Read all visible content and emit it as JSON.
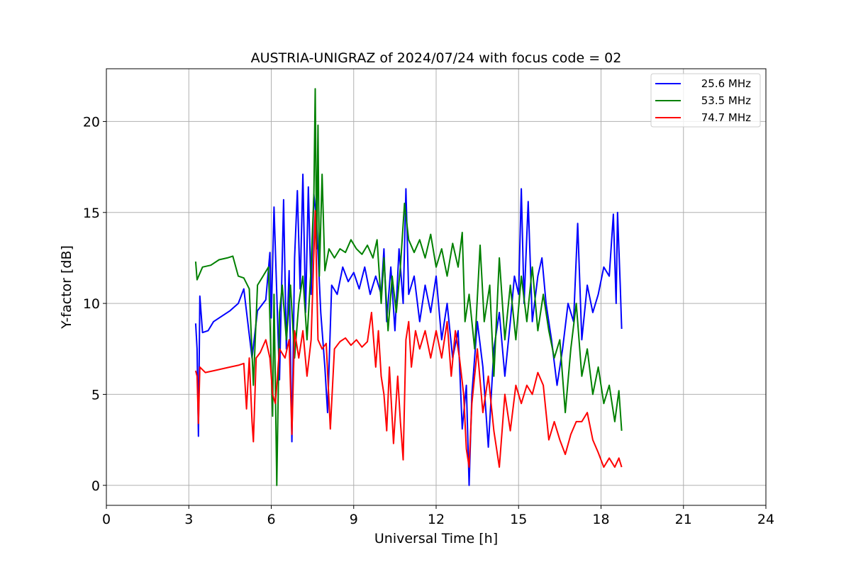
{
  "chart_data": {
    "type": "line",
    "title": "AUSTRIA-UNIGRAZ of 2024/07/24 with focus code = 02",
    "xlabel": "Universal Time [h]",
    "ylabel": "Y-factor [dB]",
    "xlim": [
      0,
      24
    ],
    "ylim": [
      -1.1,
      22.9
    ],
    "xticks": [
      0,
      3,
      6,
      9,
      12,
      15,
      18,
      21,
      24
    ],
    "yticks": [
      0,
      5,
      10,
      15,
      20
    ],
    "grid": true,
    "legend_position": "top-right",
    "series": [
      {
        "name": "25.6 MHz",
        "color": "#0000ff",
        "points": [
          [
            3.25,
            8.9
          ],
          [
            3.3,
            7.5
          ],
          [
            3.35,
            2.7
          ],
          [
            3.4,
            10.4
          ],
          [
            3.5,
            8.4
          ],
          [
            3.7,
            8.5
          ],
          [
            3.9,
            9.0
          ],
          [
            4.2,
            9.3
          ],
          [
            4.5,
            9.6
          ],
          [
            4.8,
            10.0
          ],
          [
            5.0,
            10.8
          ],
          [
            5.3,
            7.0
          ],
          [
            5.5,
            9.6
          ],
          [
            5.8,
            10.2
          ],
          [
            5.95,
            12.8
          ],
          [
            6.0,
            9.2
          ],
          [
            6.1,
            15.3
          ],
          [
            6.2,
            10.5
          ],
          [
            6.3,
            5.8
          ],
          [
            6.45,
            15.7
          ],
          [
            6.55,
            7.5
          ],
          [
            6.65,
            11.8
          ],
          [
            6.75,
            2.4
          ],
          [
            6.85,
            12.5
          ],
          [
            6.95,
            16.2
          ],
          [
            7.05,
            10.8
          ],
          [
            7.15,
            17.1
          ],
          [
            7.25,
            9.5
          ],
          [
            7.35,
            16.4
          ],
          [
            7.45,
            10.5
          ],
          [
            7.55,
            16.0
          ],
          [
            7.65,
            14.5
          ],
          [
            7.8,
            9.5
          ],
          [
            7.95,
            6.5
          ],
          [
            8.05,
            4.0
          ],
          [
            8.2,
            11.0
          ],
          [
            8.4,
            10.5
          ],
          [
            8.6,
            12.0
          ],
          [
            8.8,
            11.2
          ],
          [
            9.0,
            11.7
          ],
          [
            9.2,
            10.8
          ],
          [
            9.4,
            12.0
          ],
          [
            9.6,
            10.5
          ],
          [
            9.8,
            11.5
          ],
          [
            10.0,
            10.5
          ],
          [
            10.1,
            13.0
          ],
          [
            10.2,
            9.0
          ],
          [
            10.35,
            12.0
          ],
          [
            10.5,
            8.5
          ],
          [
            10.65,
            13.0
          ],
          [
            10.8,
            10.0
          ],
          [
            10.9,
            16.3
          ],
          [
            11.0,
            10.5
          ],
          [
            11.2,
            11.5
          ],
          [
            11.4,
            9.0
          ],
          [
            11.6,
            11.0
          ],
          [
            11.8,
            9.5
          ],
          [
            12.0,
            11.5
          ],
          [
            12.2,
            8.0
          ],
          [
            12.4,
            10.0
          ],
          [
            12.6,
            7.0
          ],
          [
            12.8,
            8.5
          ],
          [
            12.95,
            3.1
          ],
          [
            13.1,
            5.5
          ],
          [
            13.2,
            0.0
          ],
          [
            13.3,
            5.0
          ],
          [
            13.5,
            9.0
          ],
          [
            13.7,
            6.5
          ],
          [
            13.9,
            2.1
          ],
          [
            14.1,
            7.5
          ],
          [
            14.3,
            9.5
          ],
          [
            14.5,
            6.0
          ],
          [
            14.7,
            9.0
          ],
          [
            14.85,
            11.5
          ],
          [
            15.0,
            10.5
          ],
          [
            15.1,
            16.3
          ],
          [
            15.2,
            10.0
          ],
          [
            15.35,
            15.6
          ],
          [
            15.5,
            9.0
          ],
          [
            15.7,
            11.5
          ],
          [
            15.85,
            12.5
          ],
          [
            16.0,
            10.0
          ],
          [
            16.2,
            8.0
          ],
          [
            16.4,
            5.5
          ],
          [
            16.6,
            7.5
          ],
          [
            16.8,
            10.0
          ],
          [
            17.0,
            9.0
          ],
          [
            17.15,
            14.4
          ],
          [
            17.3,
            8.0
          ],
          [
            17.5,
            11.0
          ],
          [
            17.7,
            9.5
          ],
          [
            17.9,
            10.5
          ],
          [
            18.1,
            12.0
          ],
          [
            18.3,
            11.5
          ],
          [
            18.45,
            14.9
          ],
          [
            18.55,
            10.0
          ],
          [
            18.6,
            15.0
          ],
          [
            18.7,
            11.0
          ],
          [
            18.75,
            8.6
          ]
        ]
      },
      {
        "name": "53.5 MHz",
        "color": "#008000",
        "points": [
          [
            3.25,
            12.3
          ],
          [
            3.3,
            11.3
          ],
          [
            3.5,
            12.0
          ],
          [
            3.8,
            12.1
          ],
          [
            4.1,
            12.4
          ],
          [
            4.4,
            12.5
          ],
          [
            4.6,
            12.6
          ],
          [
            4.8,
            11.5
          ],
          [
            5.0,
            11.4
          ],
          [
            5.2,
            10.8
          ],
          [
            5.35,
            5.5
          ],
          [
            5.5,
            11.0
          ],
          [
            5.7,
            11.5
          ],
          [
            5.9,
            12.0
          ],
          [
            6.05,
            3.8
          ],
          [
            6.1,
            10.5
          ],
          [
            6.2,
            0.0
          ],
          [
            6.3,
            9.5
          ],
          [
            6.4,
            11.0
          ],
          [
            6.55,
            8.0
          ],
          [
            6.7,
            11.0
          ],
          [
            6.85,
            7.0
          ],
          [
            7.0,
            10.0
          ],
          [
            7.15,
            11.5
          ],
          [
            7.3,
            8.0
          ],
          [
            7.45,
            12.0
          ],
          [
            7.55,
            16.0
          ],
          [
            7.6,
            21.8
          ],
          [
            7.65,
            13.0
          ],
          [
            7.7,
            19.8
          ],
          [
            7.75,
            11.5
          ],
          [
            7.85,
            17.1
          ],
          [
            7.95,
            11.8
          ],
          [
            8.1,
            13.0
          ],
          [
            8.3,
            12.5
          ],
          [
            8.5,
            13.0
          ],
          [
            8.7,
            12.8
          ],
          [
            8.9,
            13.5
          ],
          [
            9.1,
            13.0
          ],
          [
            9.3,
            12.7
          ],
          [
            9.5,
            13.2
          ],
          [
            9.7,
            12.5
          ],
          [
            9.85,
            13.5
          ],
          [
            10.0,
            10.0
          ],
          [
            10.1,
            12.5
          ],
          [
            10.25,
            8.5
          ],
          [
            10.4,
            11.5
          ],
          [
            10.55,
            9.5
          ],
          [
            10.7,
            12.0
          ],
          [
            10.85,
            15.5
          ],
          [
            11.0,
            13.5
          ],
          [
            11.2,
            12.8
          ],
          [
            11.4,
            13.5
          ],
          [
            11.6,
            12.5
          ],
          [
            11.8,
            13.8
          ],
          [
            12.0,
            12.0
          ],
          [
            12.2,
            13.0
          ],
          [
            12.4,
            11.5
          ],
          [
            12.6,
            13.3
          ],
          [
            12.8,
            12.0
          ],
          [
            12.95,
            13.9
          ],
          [
            13.05,
            9.0
          ],
          [
            13.2,
            10.5
          ],
          [
            13.4,
            7.5
          ],
          [
            13.6,
            13.2
          ],
          [
            13.75,
            9.0
          ],
          [
            13.95,
            11.0
          ],
          [
            14.1,
            6.0
          ],
          [
            14.3,
            12.5
          ],
          [
            14.5,
            8.0
          ],
          [
            14.7,
            11.0
          ],
          [
            14.9,
            8.0
          ],
          [
            15.1,
            11.5
          ],
          [
            15.3,
            9.0
          ],
          [
            15.5,
            12.0
          ],
          [
            15.7,
            8.5
          ],
          [
            15.9,
            10.5
          ],
          [
            16.1,
            8.5
          ],
          [
            16.3,
            7.0
          ],
          [
            16.5,
            8.0
          ],
          [
            16.7,
            4.0
          ],
          [
            16.9,
            7.5
          ],
          [
            17.1,
            10.0
          ],
          [
            17.3,
            6.0
          ],
          [
            17.5,
            7.5
          ],
          [
            17.7,
            5.0
          ],
          [
            17.9,
            6.5
          ],
          [
            18.1,
            4.5
          ],
          [
            18.3,
            5.5
          ],
          [
            18.5,
            3.5
          ],
          [
            18.65,
            5.2
          ],
          [
            18.75,
            3.0
          ]
        ]
      },
      {
        "name": "74.7 MHz",
        "color": "#ff0000",
        "points": [
          [
            3.25,
            6.3
          ],
          [
            3.3,
            6.0
          ],
          [
            3.35,
            3.4
          ],
          [
            3.4,
            6.5
          ],
          [
            3.6,
            6.2
          ],
          [
            3.9,
            6.3
          ],
          [
            4.2,
            6.4
          ],
          [
            4.5,
            6.5
          ],
          [
            4.8,
            6.6
          ],
          [
            5.0,
            6.7
          ],
          [
            5.1,
            4.2
          ],
          [
            5.2,
            7.0
          ],
          [
            5.3,
            3.5
          ],
          [
            5.35,
            2.4
          ],
          [
            5.45,
            7.0
          ],
          [
            5.6,
            7.3
          ],
          [
            5.8,
            8.0
          ],
          [
            5.95,
            7.0
          ],
          [
            6.05,
            5.0
          ],
          [
            6.15,
            4.5
          ],
          [
            6.3,
            7.5
          ],
          [
            6.5,
            7.0
          ],
          [
            6.65,
            8.0
          ],
          [
            6.75,
            2.8
          ],
          [
            6.85,
            8.5
          ],
          [
            7.0,
            7.0
          ],
          [
            7.15,
            8.5
          ],
          [
            7.3,
            6.0
          ],
          [
            7.45,
            8.0
          ],
          [
            7.6,
            15.1
          ],
          [
            7.7,
            8.0
          ],
          [
            7.85,
            7.5
          ],
          [
            8.0,
            7.8
          ],
          [
            8.15,
            3.1
          ],
          [
            8.3,
            7.5
          ],
          [
            8.5,
            7.9
          ],
          [
            8.7,
            8.1
          ],
          [
            8.9,
            7.7
          ],
          [
            9.1,
            8.0
          ],
          [
            9.3,
            7.6
          ],
          [
            9.5,
            7.9
          ],
          [
            9.65,
            9.5
          ],
          [
            9.8,
            6.5
          ],
          [
            9.9,
            8.5
          ],
          [
            10.0,
            6.0
          ],
          [
            10.1,
            5.0
          ],
          [
            10.2,
            3.0
          ],
          [
            10.3,
            6.5
          ],
          [
            10.45,
            2.3
          ],
          [
            10.6,
            6.0
          ],
          [
            10.7,
            3.5
          ],
          [
            10.8,
            1.4
          ],
          [
            10.9,
            8.0
          ],
          [
            11.0,
            9.0
          ],
          [
            11.1,
            6.5
          ],
          [
            11.25,
            8.5
          ],
          [
            11.4,
            7.5
          ],
          [
            11.6,
            8.5
          ],
          [
            11.8,
            7.0
          ],
          [
            12.0,
            8.5
          ],
          [
            12.2,
            7.0
          ],
          [
            12.4,
            9.0
          ],
          [
            12.55,
            6.0
          ],
          [
            12.7,
            8.5
          ],
          [
            12.85,
            7.0
          ],
          [
            13.0,
            5.0
          ],
          [
            13.1,
            2.0
          ],
          [
            13.2,
            1.0
          ],
          [
            13.3,
            4.5
          ],
          [
            13.5,
            7.5
          ],
          [
            13.7,
            4.0
          ],
          [
            13.9,
            6.0
          ],
          [
            14.1,
            3.0
          ],
          [
            14.3,
            1.0
          ],
          [
            14.5,
            5.0
          ],
          [
            14.7,
            3.0
          ],
          [
            14.9,
            5.5
          ],
          [
            15.1,
            4.5
          ],
          [
            15.3,
            5.5
          ],
          [
            15.5,
            5.0
          ],
          [
            15.7,
            6.2
          ],
          [
            15.9,
            5.5
          ],
          [
            16.0,
            4.0
          ],
          [
            16.1,
            2.5
          ],
          [
            16.3,
            3.5
          ],
          [
            16.5,
            2.5
          ],
          [
            16.7,
            1.7
          ],
          [
            16.9,
            2.8
          ],
          [
            17.1,
            3.5
          ],
          [
            17.3,
            3.5
          ],
          [
            17.5,
            4.0
          ],
          [
            17.7,
            2.5
          ],
          [
            17.9,
            1.8
          ],
          [
            18.1,
            1.0
          ],
          [
            18.3,
            1.5
          ],
          [
            18.5,
            1.0
          ],
          [
            18.65,
            1.5
          ],
          [
            18.75,
            1.0
          ]
        ]
      }
    ]
  }
}
